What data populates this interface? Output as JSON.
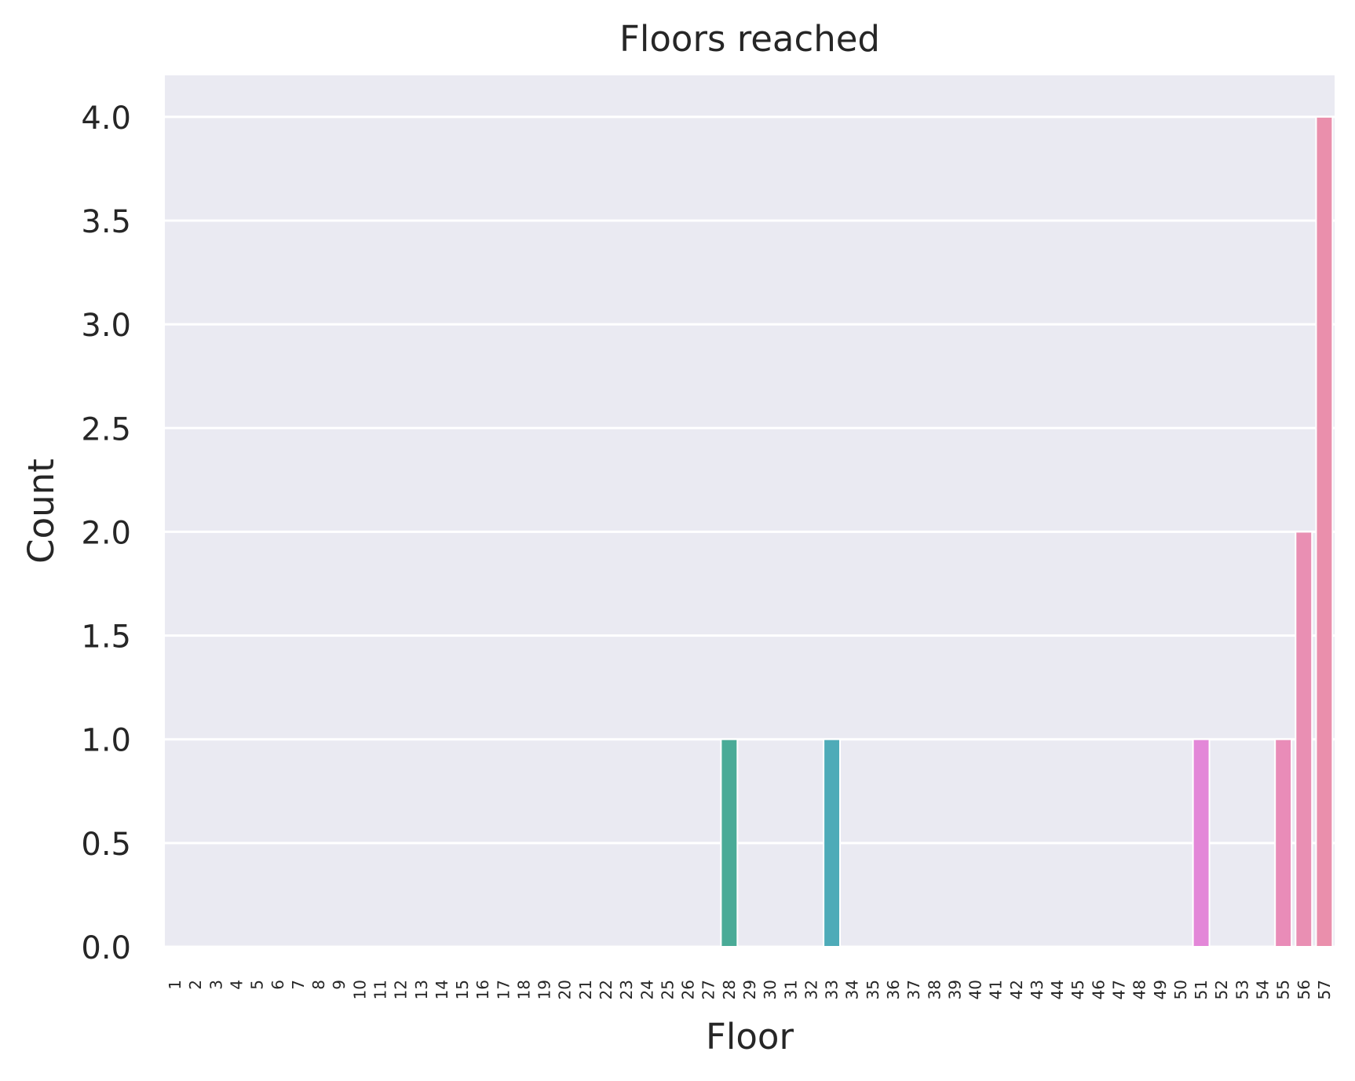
{
  "chart_data": {
    "type": "bar",
    "title": "Floors reached",
    "xlabel": "Floor",
    "ylabel": "Count",
    "ylim": [
      0,
      4.2
    ],
    "yticks": [
      0.0,
      0.5,
      1.0,
      1.5,
      2.0,
      2.5,
      3.0,
      3.5,
      4.0
    ],
    "ytick_labels": [
      "0.0",
      "0.5",
      "1.0",
      "1.5",
      "2.0",
      "2.5",
      "3.0",
      "3.5",
      "4.0"
    ],
    "grid": true,
    "categories": [
      "1",
      "2",
      "3",
      "4",
      "5",
      "6",
      "7",
      "8",
      "9",
      "10",
      "11",
      "12",
      "13",
      "14",
      "15",
      "16",
      "17",
      "18",
      "19",
      "20",
      "21",
      "22",
      "23",
      "24",
      "25",
      "26",
      "27",
      "28",
      "29",
      "30",
      "31",
      "32",
      "33",
      "34",
      "35",
      "36",
      "37",
      "38",
      "39",
      "40",
      "41",
      "42",
      "43",
      "44",
      "45",
      "46",
      "47",
      "48",
      "49",
      "50",
      "51",
      "52",
      "53",
      "54",
      "55",
      "56",
      "57"
    ],
    "values": [
      0,
      0,
      0,
      0,
      0,
      0,
      0,
      0,
      0,
      0,
      0,
      0,
      0,
      0,
      0,
      0,
      0,
      0,
      0,
      0,
      0,
      0,
      0,
      0,
      0,
      0,
      0,
      1,
      0,
      0,
      0,
      0,
      1,
      0,
      0,
      0,
      0,
      0,
      0,
      0,
      0,
      0,
      0,
      0,
      0,
      0,
      0,
      0,
      0,
      0,
      1,
      0,
      0,
      0,
      1,
      2,
      4
    ],
    "bar_colors": {
      "28": "#4aab97",
      "33": "#4eabb8",
      "51": "#e387d8",
      "55": "#e98cb8",
      "56": "#e98fb3",
      "57": "#ea8fac"
    },
    "colors": {
      "plot_background": "#eaeaf2",
      "grid": "#ffffff",
      "figure_background": "#ffffff"
    }
  }
}
